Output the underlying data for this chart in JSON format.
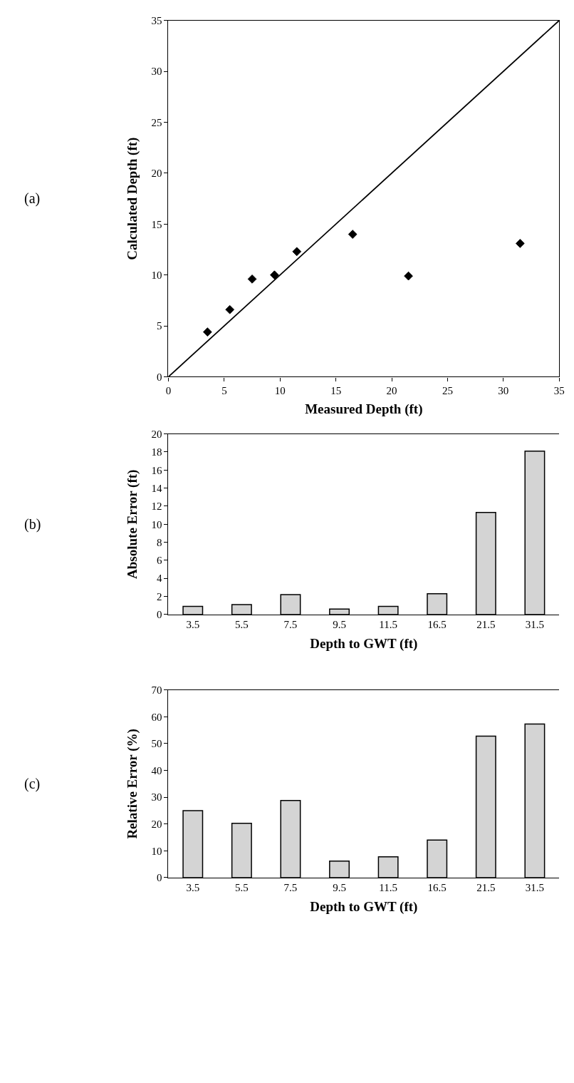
{
  "chart_data": [
    {
      "type": "scatter",
      "xlabel": "Measured Depth (ft)",
      "ylabel": "Calculated Depth (ft)",
      "annotations": [
        "(a)"
      ],
      "xlim": [
        0,
        35
      ],
      "ylim": [
        0,
        35
      ],
      "xticks": [
        0,
        5,
        10,
        15,
        20,
        25,
        30,
        35
      ],
      "yticks": [
        0,
        5,
        10,
        15,
        20,
        25,
        30,
        35
      ],
      "grid": false,
      "series": [
        {
          "color": "#000000",
          "marker": "diamond",
          "x": [
            3.5,
            5.5,
            7.5,
            9.5,
            11.5,
            16.5,
            21.5,
            31.5
          ],
          "values": [
            4.4,
            6.6,
            9.6,
            10,
            12.3,
            14,
            9.9,
            13.1
          ]
        },
        {
          "type": "line",
          "color": "#000000",
          "x": [
            0,
            35
          ],
          "values": [
            0,
            35
          ]
        }
      ]
    },
    {
      "type": "bar",
      "xlabel": "Depth to GWT (ft)",
      "ylabel": "Absolute Error (ft)",
      "annotations": [
        "(b)"
      ],
      "categories": [
        "3.5",
        "5.5",
        "7.5",
        "9.5",
        "11.5",
        "16.5",
        "21.5",
        "31.5"
      ],
      "ylim": [
        0,
        20
      ],
      "yticks": [
        0,
        2,
        4,
        6,
        8,
        10,
        12,
        14,
        16,
        18,
        20
      ],
      "grid": false,
      "series": [
        {
          "color": "#d4d4d4",
          "values": [
            0.9,
            1.1,
            2.2,
            0.6,
            0.9,
            2.3,
            11.3,
            18.1
          ]
        }
      ]
    },
    {
      "type": "bar",
      "xlabel": "Depth to GWT (ft)",
      "ylabel": "Relative Error (%)",
      "annotations": [
        "(c)"
      ],
      "categories": [
        "3.5",
        "5.5",
        "7.5",
        "9.5",
        "11.5",
        "16.5",
        "21.5",
        "31.5"
      ],
      "ylim": [
        0,
        70
      ],
      "yticks": [
        0,
        10,
        20,
        30,
        40,
        50,
        60,
        70
      ],
      "grid": false,
      "series": [
        {
          "color": "#d4d4d4",
          "values": [
            25,
            20.3,
            28.8,
            6.2,
            7.8,
            14,
            52.8,
            57.3
          ]
        }
      ]
    }
  ]
}
